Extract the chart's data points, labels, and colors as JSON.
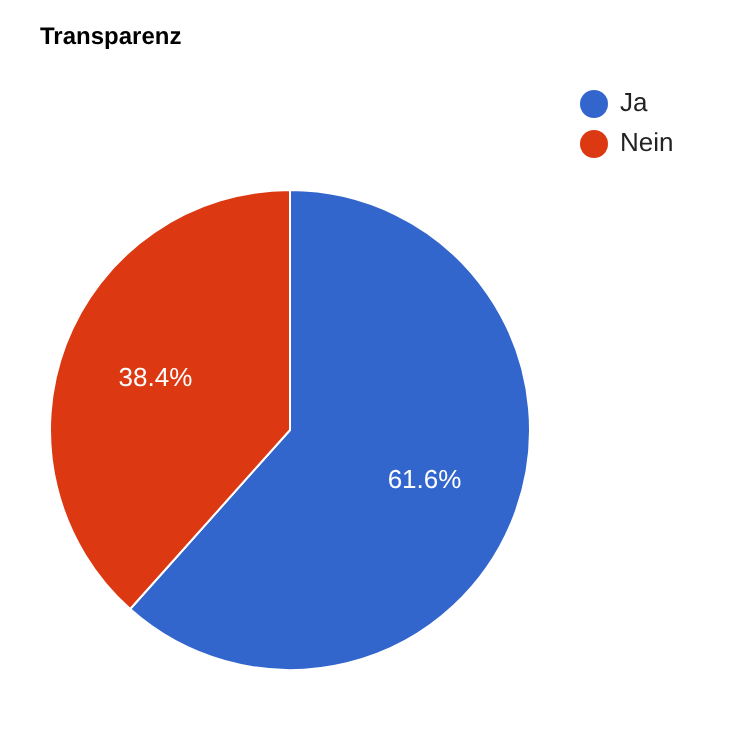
{
  "chart_data": {
    "type": "pie",
    "title": "Transparenz",
    "categories": [
      "Ja",
      "Nein"
    ],
    "values": [
      61.6,
      38.4
    ],
    "colors": [
      "#3366cc",
      "#dc3912"
    ],
    "value_labels": [
      "61.6%",
      "38.4%"
    ],
    "legend": "top right"
  }
}
